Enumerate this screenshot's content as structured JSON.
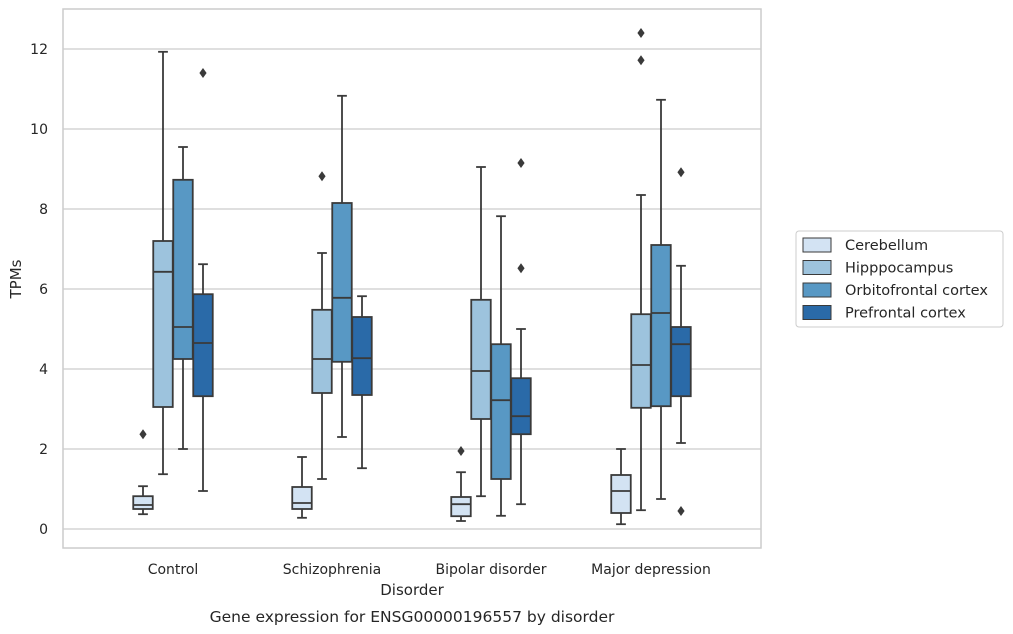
{
  "caption": "Gene expression for ENSG00000196557 by disorder",
  "chart_data": {
    "type": "box",
    "title": "",
    "xlabel": "Disorder",
    "ylabel": "TPMs",
    "ylim": [
      -0.45,
      13.0
    ],
    "yticks": [
      0,
      2,
      4,
      6,
      8,
      10,
      12
    ],
    "grid": "horizontal",
    "legend_position": "right",
    "categories": [
      "Control",
      "Schizophrenia",
      "Bipolar disorder",
      "Major depression"
    ],
    "series": [
      {
        "name": "Cerebellum",
        "color": "#d3e3f3",
        "boxes": [
          {
            "whisker_low": 0.37,
            "q1": 0.5,
            "median": 0.6,
            "q3": 0.82,
            "whisker_high": 1.07,
            "outliers": [
              2.37
            ]
          },
          {
            "whisker_low": 0.28,
            "q1": 0.5,
            "median": 0.65,
            "q3": 1.05,
            "whisker_high": 1.8,
            "outliers": []
          },
          {
            "whisker_low": 0.2,
            "q1": 0.32,
            "median": 0.62,
            "q3": 0.8,
            "whisker_high": 1.42,
            "outliers": [
              1.95
            ]
          },
          {
            "whisker_low": 0.12,
            "q1": 0.4,
            "median": 0.95,
            "q3": 1.35,
            "whisker_high": 2.0,
            "outliers": []
          }
        ]
      },
      {
        "name": "Hipppocampus",
        "color": "#9dc3dd",
        "boxes": [
          {
            "whisker_low": 1.37,
            "q1": 3.05,
            "median": 6.43,
            "q3": 7.2,
            "whisker_high": 11.93,
            "outliers": []
          },
          {
            "whisker_low": 1.25,
            "q1": 3.4,
            "median": 4.25,
            "q3": 5.48,
            "whisker_high": 6.9,
            "outliers": [
              8.82
            ]
          },
          {
            "whisker_low": 0.82,
            "q1": 2.75,
            "median": 3.95,
            "q3": 5.73,
            "whisker_high": 9.05,
            "outliers": []
          },
          {
            "whisker_low": 0.47,
            "q1": 3.03,
            "median": 4.1,
            "q3": 5.37,
            "whisker_high": 8.35,
            "outliers": [
              11.72,
              12.4
            ]
          }
        ]
      },
      {
        "name": "Orbitofrontal cortex",
        "color": "#5898c4",
        "boxes": [
          {
            "whisker_low": 2.0,
            "q1": 4.25,
            "median": 5.05,
            "q3": 8.73,
            "whisker_high": 9.55,
            "outliers": []
          },
          {
            "whisker_low": 2.3,
            "q1": 4.18,
            "median": 5.78,
            "q3": 8.15,
            "whisker_high": 10.83,
            "outliers": []
          },
          {
            "whisker_low": 0.33,
            "q1": 1.25,
            "median": 3.22,
            "q3": 4.62,
            "whisker_high": 7.82,
            "outliers": []
          },
          {
            "whisker_low": 0.75,
            "q1": 3.07,
            "median": 5.4,
            "q3": 7.1,
            "whisker_high": 10.73,
            "outliers": []
          }
        ]
      },
      {
        "name": "Prefrontal cortex",
        "color": "#2a6aa8",
        "boxes": [
          {
            "whisker_low": 0.95,
            "q1": 3.32,
            "median": 4.65,
            "q3": 5.87,
            "whisker_high": 6.62,
            "outliers": [
              11.4
            ]
          },
          {
            "whisker_low": 1.52,
            "q1": 3.35,
            "median": 4.27,
            "q3": 5.3,
            "whisker_high": 5.82,
            "outliers": []
          },
          {
            "whisker_low": 0.62,
            "q1": 2.37,
            "median": 2.82,
            "q3": 3.77,
            "whisker_high": 5.0,
            "outliers": [
              6.52,
              9.15
            ]
          },
          {
            "whisker_low": 2.15,
            "q1": 3.32,
            "median": 4.62,
            "q3": 5.05,
            "whisker_high": 6.58,
            "outliers": [
              0.45,
              8.92
            ]
          }
        ]
      }
    ]
  }
}
